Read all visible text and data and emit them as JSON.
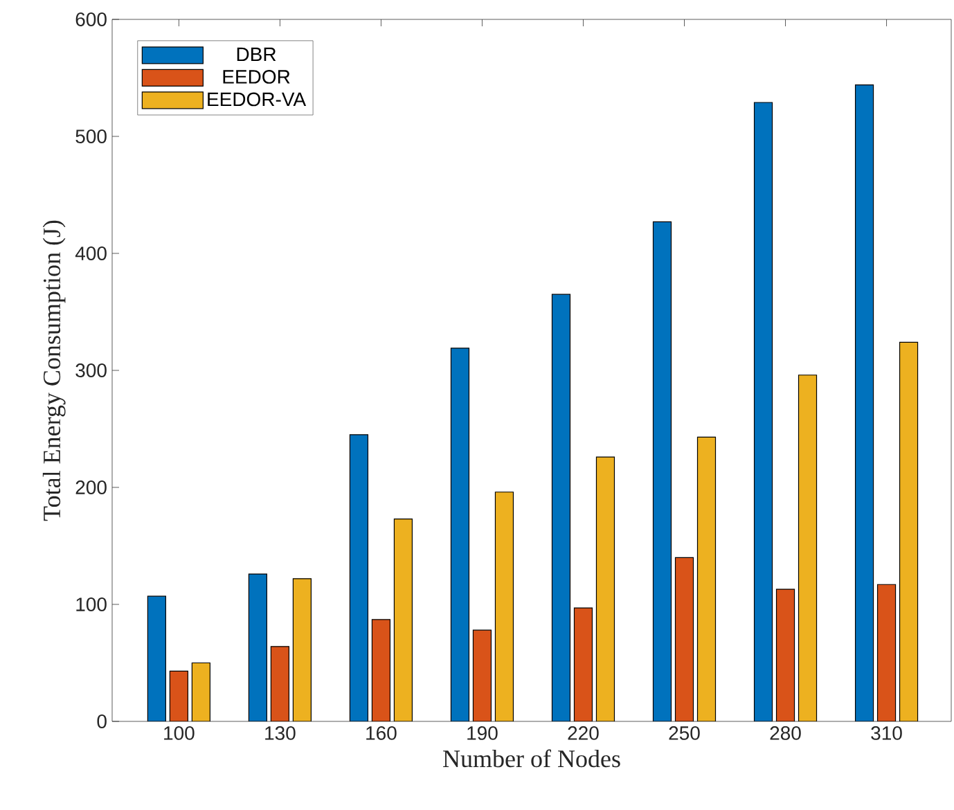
{
  "chart_data": {
    "type": "bar",
    "xlabel": "Number of Nodes",
    "ylabel": "Total Energy Consumption (J)",
    "categories": [
      "100",
      "130",
      "160",
      "190",
      "220",
      "250",
      "280",
      "310"
    ],
    "series": [
      {
        "name": "DBR",
        "color": "#0072bd",
        "values": [
          107,
          126,
          245,
          319,
          365,
          427,
          529,
          544
        ]
      },
      {
        "name": "EEDOR",
        "color": "#d95319",
        "values": [
          43,
          64,
          87,
          78,
          97,
          140,
          113,
          117
        ]
      },
      {
        "name": "EEDOR-VA",
        "color": "#edb120",
        "values": [
          50,
          122,
          173,
          196,
          226,
          243,
          296,
          324
        ]
      }
    ],
    "ylim": [
      0,
      600
    ],
    "yticks": [
      0,
      100,
      200,
      300,
      400,
      500,
      600
    ],
    "grid": false,
    "legend": "top left"
  }
}
